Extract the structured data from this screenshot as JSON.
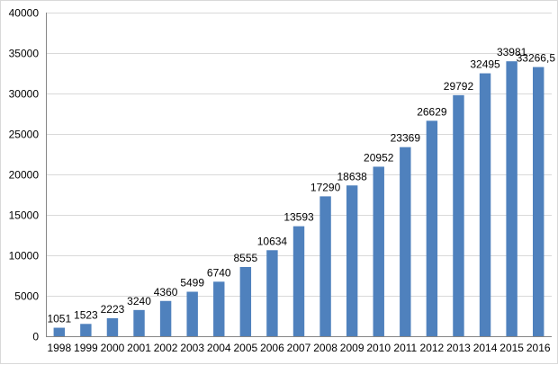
{
  "chart_data": {
    "type": "bar",
    "categories": [
      "1998",
      "1999",
      "2000",
      "2001",
      "2002",
      "2003",
      "2004",
      "2005",
      "2006",
      "2007",
      "2008",
      "2009",
      "2010",
      "2011",
      "2012",
      "2013",
      "2014",
      "2015",
      "2016"
    ],
    "values": [
      1051,
      1523,
      2223,
      3240,
      4360,
      5499,
      6740,
      8555,
      10634,
      13593,
      17290,
      18638,
      20952,
      23369,
      26629,
      29792,
      32495,
      33981,
      33266.5
    ],
    "data_labels": [
      "1051",
      "1523",
      "2223",
      "3240",
      "4360",
      "5499",
      "6740",
      "8555",
      "10634",
      "13593",
      "17290",
      "18638",
      "20952",
      "23369",
      "26629",
      "29792",
      "32495",
      "33981",
      "33266,5"
    ],
    "yticks": [
      0,
      5000,
      10000,
      15000,
      20000,
      25000,
      30000,
      35000,
      40000
    ],
    "ylim": [
      0,
      40000
    ],
    "grid": true,
    "legend": "none",
    "bar_color": "#4f81bd"
  }
}
